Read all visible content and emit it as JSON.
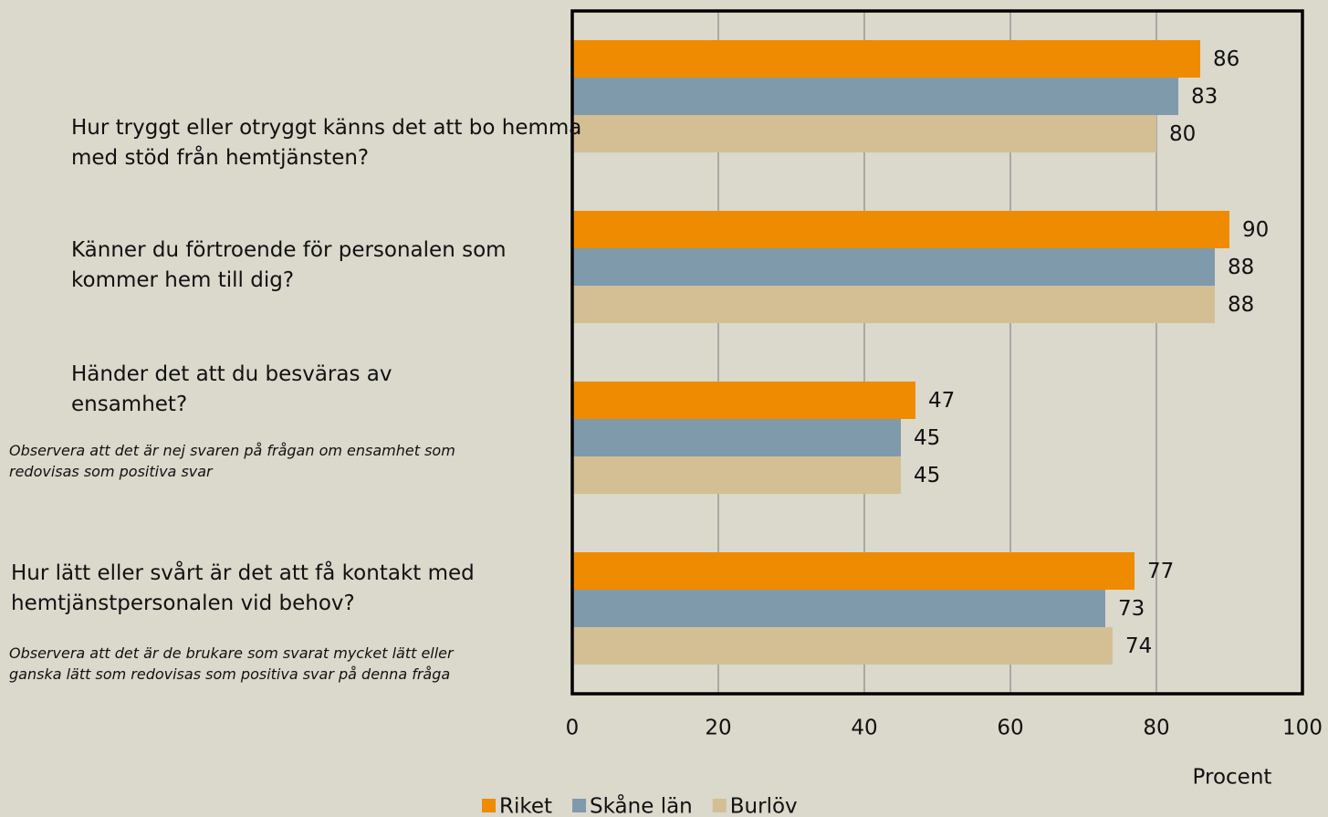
{
  "chart_data": {
    "type": "bar",
    "orientation": "horizontal",
    "categories": [
      "Hur tryggt eller otryggt känns det att bo hemma med stöd från hemtjänsten?",
      "Känner du förtroende för personalen som kommer hem till dig?",
      "Händer det att du besväras av ensamhet?",
      "Hur lätt eller svårt är det att få kontakt med hemtjänstpersonalen vid behov?"
    ],
    "series": [
      {
        "name": "Riket",
        "color": "#ee8b00",
        "values": [
          86,
          90,
          47,
          77
        ]
      },
      {
        "name": "Skåne län",
        "color": "#7f9aab",
        "values": [
          83,
          88,
          45,
          73
        ]
      },
      {
        "name": "Burlöv",
        "color": "#d4bf94",
        "values": [
          80,
          88,
          45,
          74
        ]
      }
    ],
    "annotations": [
      "Observera att det är nej svaren på frågan om ensamhet som redovisas som positiva svar",
      "Observera att det är de brukare som svarat mycket lätt eller ganska lätt som redovisas som positiva svar på denna fråga"
    ],
    "xlabel": "Procent",
    "xlim": [
      0,
      100
    ],
    "xticks": [
      0,
      20,
      40,
      60,
      80,
      100
    ],
    "grid": true,
    "legend": "bottom"
  }
}
